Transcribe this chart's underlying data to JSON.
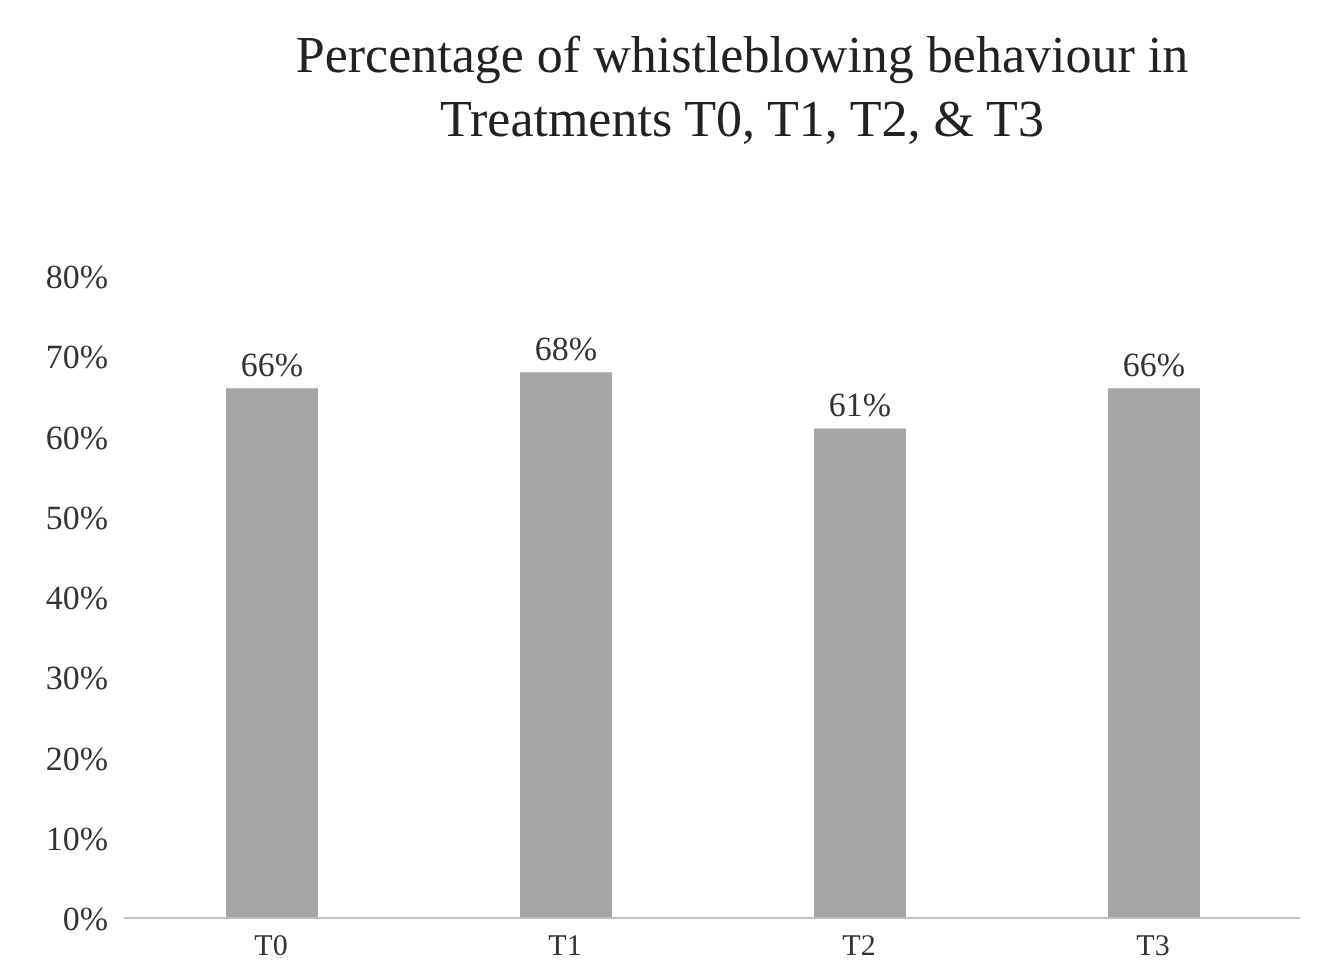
{
  "chart_data": {
    "type": "bar",
    "title": "Percentage of whistleblowing behaviour in Treatments T0, T1, T2, & T3",
    "categories": [
      "T0",
      "T1",
      "T2",
      "T3"
    ],
    "values": [
      66,
      68,
      61,
      66
    ],
    "value_labels": [
      "66%",
      "68%",
      "61%",
      "66%"
    ],
    "color": "#a5a5a5",
    "ylim": [
      0,
      80
    ],
    "yticks": [
      {
        "value": 0,
        "label": "0%"
      },
      {
        "value": 10,
        "label": "10%"
      },
      {
        "value": 20,
        "label": "20%"
      },
      {
        "value": 30,
        "label": "30%"
      },
      {
        "value": 40,
        "label": "40%"
      },
      {
        "value": 50,
        "label": "50%"
      },
      {
        "value": 60,
        "label": "60%"
      },
      {
        "value": 70,
        "label": "70%"
      },
      {
        "value": 80,
        "label": "80%"
      }
    ],
    "grid": false,
    "legend": false
  }
}
